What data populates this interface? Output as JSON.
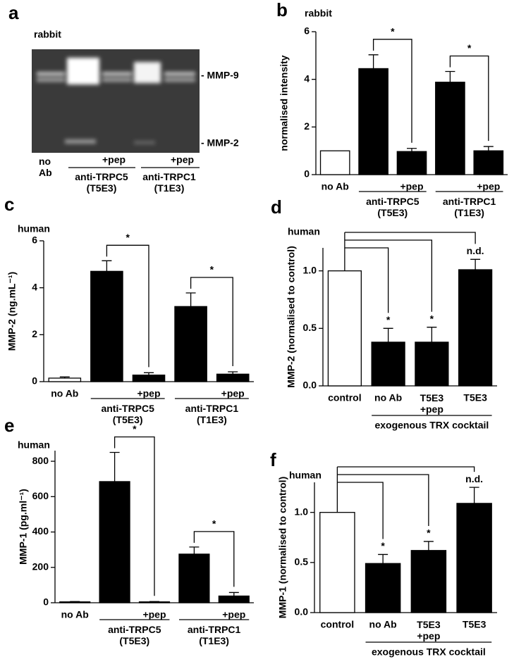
{
  "gel": {
    "panel": "a",
    "subtitle": "rabbit",
    "band_labels": [
      "- MMP-9",
      "- MMP-2"
    ],
    "lane_labels": [
      "no\nAb",
      "+pep",
      "+pep"
    ],
    "group_labels": [
      "anti-TRPC5\n(T5E3)",
      "anti-TRPC1\n(T1E3)"
    ]
  },
  "chart_data": [
    {
      "type": "bar",
      "panel": "b",
      "subtitle": "rabbit",
      "y_label": "normalised intensity",
      "categories": [
        "no Ab",
        null,
        "+pep",
        null,
        "+pep"
      ],
      "values": [
        1,
        4.45,
        0.97,
        3.88,
        1.0
      ],
      "errors": [
        null,
        0.58,
        0.13,
        0.45,
        0.18
      ],
      "colors": [
        "#ffffff",
        "#000000",
        "#000000",
        "#000000",
        "#000000"
      ],
      "groups": [
        {
          "label": "anti-TRPC5\n(T5E3)",
          "span": [
            1,
            2
          ]
        },
        {
          "label": "anti-TRPC1\n(T1E3)",
          "span": [
            3,
            4
          ]
        }
      ],
      "comparisons": [
        {
          "pair": [
            1,
            2
          ],
          "label": "*"
        },
        {
          "pair": [
            3,
            4
          ],
          "label": "*"
        }
      ],
      "ylim": [
        0,
        6
      ],
      "yticks": [
        0,
        2,
        4,
        6
      ]
    },
    {
      "type": "bar",
      "panel": "c",
      "subtitle": "human",
      "y_label": "MMP-2 (ng.mL⁻¹)",
      "categories": [
        "no Ab",
        null,
        "+pep",
        null,
        "+pep"
      ],
      "values": [
        0.15,
        4.7,
        0.28,
        3.2,
        0.32
      ],
      "errors": [
        0.05,
        0.45,
        0.1,
        0.58,
        0.1
      ],
      "colors": [
        "#ffffff",
        "#000000",
        "#000000",
        "#000000",
        "#000000"
      ],
      "groups": [
        {
          "label": "anti-TRPC5\n(T5E3)",
          "span": [
            1,
            2
          ]
        },
        {
          "label": "anti-TRPC1\n(T1E3)",
          "span": [
            3,
            4
          ]
        }
      ],
      "comparisons": [
        {
          "pair": [
            1,
            2
          ],
          "label": "*"
        },
        {
          "pair": [
            3,
            4
          ],
          "label": "*"
        }
      ],
      "ylim": [
        0,
        6
      ],
      "yticks": [
        0,
        2,
        4,
        6
      ]
    },
    {
      "type": "bar",
      "panel": "d",
      "subtitle": "human",
      "y_label": "MMP-2 (normalised to control)",
      "categories": [
        "control",
        "no Ab",
        "T5E3\n+pep",
        "T5E3"
      ],
      "values": [
        1.0,
        0.38,
        0.38,
        1.01
      ],
      "errors": [
        null,
        0.12,
        0.13,
        0.09
      ],
      "colors": [
        "#ffffff",
        "#000000",
        "#000000",
        "#000000"
      ],
      "groups": [
        {
          "label": "exogenous TRX cocktail",
          "span": [
            1,
            3
          ]
        }
      ],
      "bar_labels": [
        null,
        "*",
        "*",
        "n.d."
      ],
      "ylim": [
        0,
        1.2
      ],
      "yticks": [
        {
          "value": 0,
          "label": "0.0"
        },
        {
          "value": 0.5,
          "label": "0.5"
        },
        {
          "value": 1,
          "label": "1.0"
        }
      ]
    },
    {
      "type": "bar",
      "panel": "e",
      "subtitle": "human",
      "y_label": "MMP-1 (pg.ml⁻¹)",
      "categories": [
        "no Ab",
        null,
        "+pep",
        null,
        "+pep"
      ],
      "values": [
        5,
        685,
        5,
        275,
        38
      ],
      "errors": [
        2,
        165,
        2,
        40,
        20
      ],
      "colors": [
        "#ffffff",
        "#000000",
        "#000000",
        "#000000",
        "#000000"
      ],
      "groups": [
        {
          "label": "anti-TRPC5\n(T5E3)",
          "span": [
            1,
            2
          ]
        },
        {
          "label": "anti-TRPC1\n(T1E3)",
          "span": [
            3,
            4
          ]
        }
      ],
      "comparisons": [
        {
          "pair": [
            1,
            2
          ],
          "label": "*"
        },
        {
          "pair": [
            3,
            4
          ],
          "label": "*"
        }
      ],
      "ylim": [
        0,
        860
      ],
      "yticks": [
        0,
        200,
        400,
        600,
        800
      ]
    },
    {
      "type": "bar",
      "panel": "f",
      "subtitle": "human",
      "y_label": "MMP-1 (normalised to control)",
      "categories": [
        "control",
        "no Ab",
        "T5E3\n+pep",
        "T5E3"
      ],
      "values": [
        1.0,
        0.49,
        0.62,
        1.09
      ],
      "errors": [
        null,
        0.09,
        0.09,
        0.16
      ],
      "colors": [
        "#ffffff",
        "#000000",
        "#000000",
        "#000000"
      ],
      "groups": [
        {
          "label": "exogenous TRX cocktail",
          "span": [
            1,
            3
          ]
        }
      ],
      "bar_labels": [
        null,
        "*",
        "*",
        "n.d."
      ],
      "ylim": [
        0,
        1.3
      ],
      "yticks": [
        {
          "value": 0,
          "label": "0.0"
        },
        {
          "value": 0.5,
          "label": "0.5"
        },
        {
          "value": 1,
          "label": "1.0"
        }
      ]
    }
  ]
}
